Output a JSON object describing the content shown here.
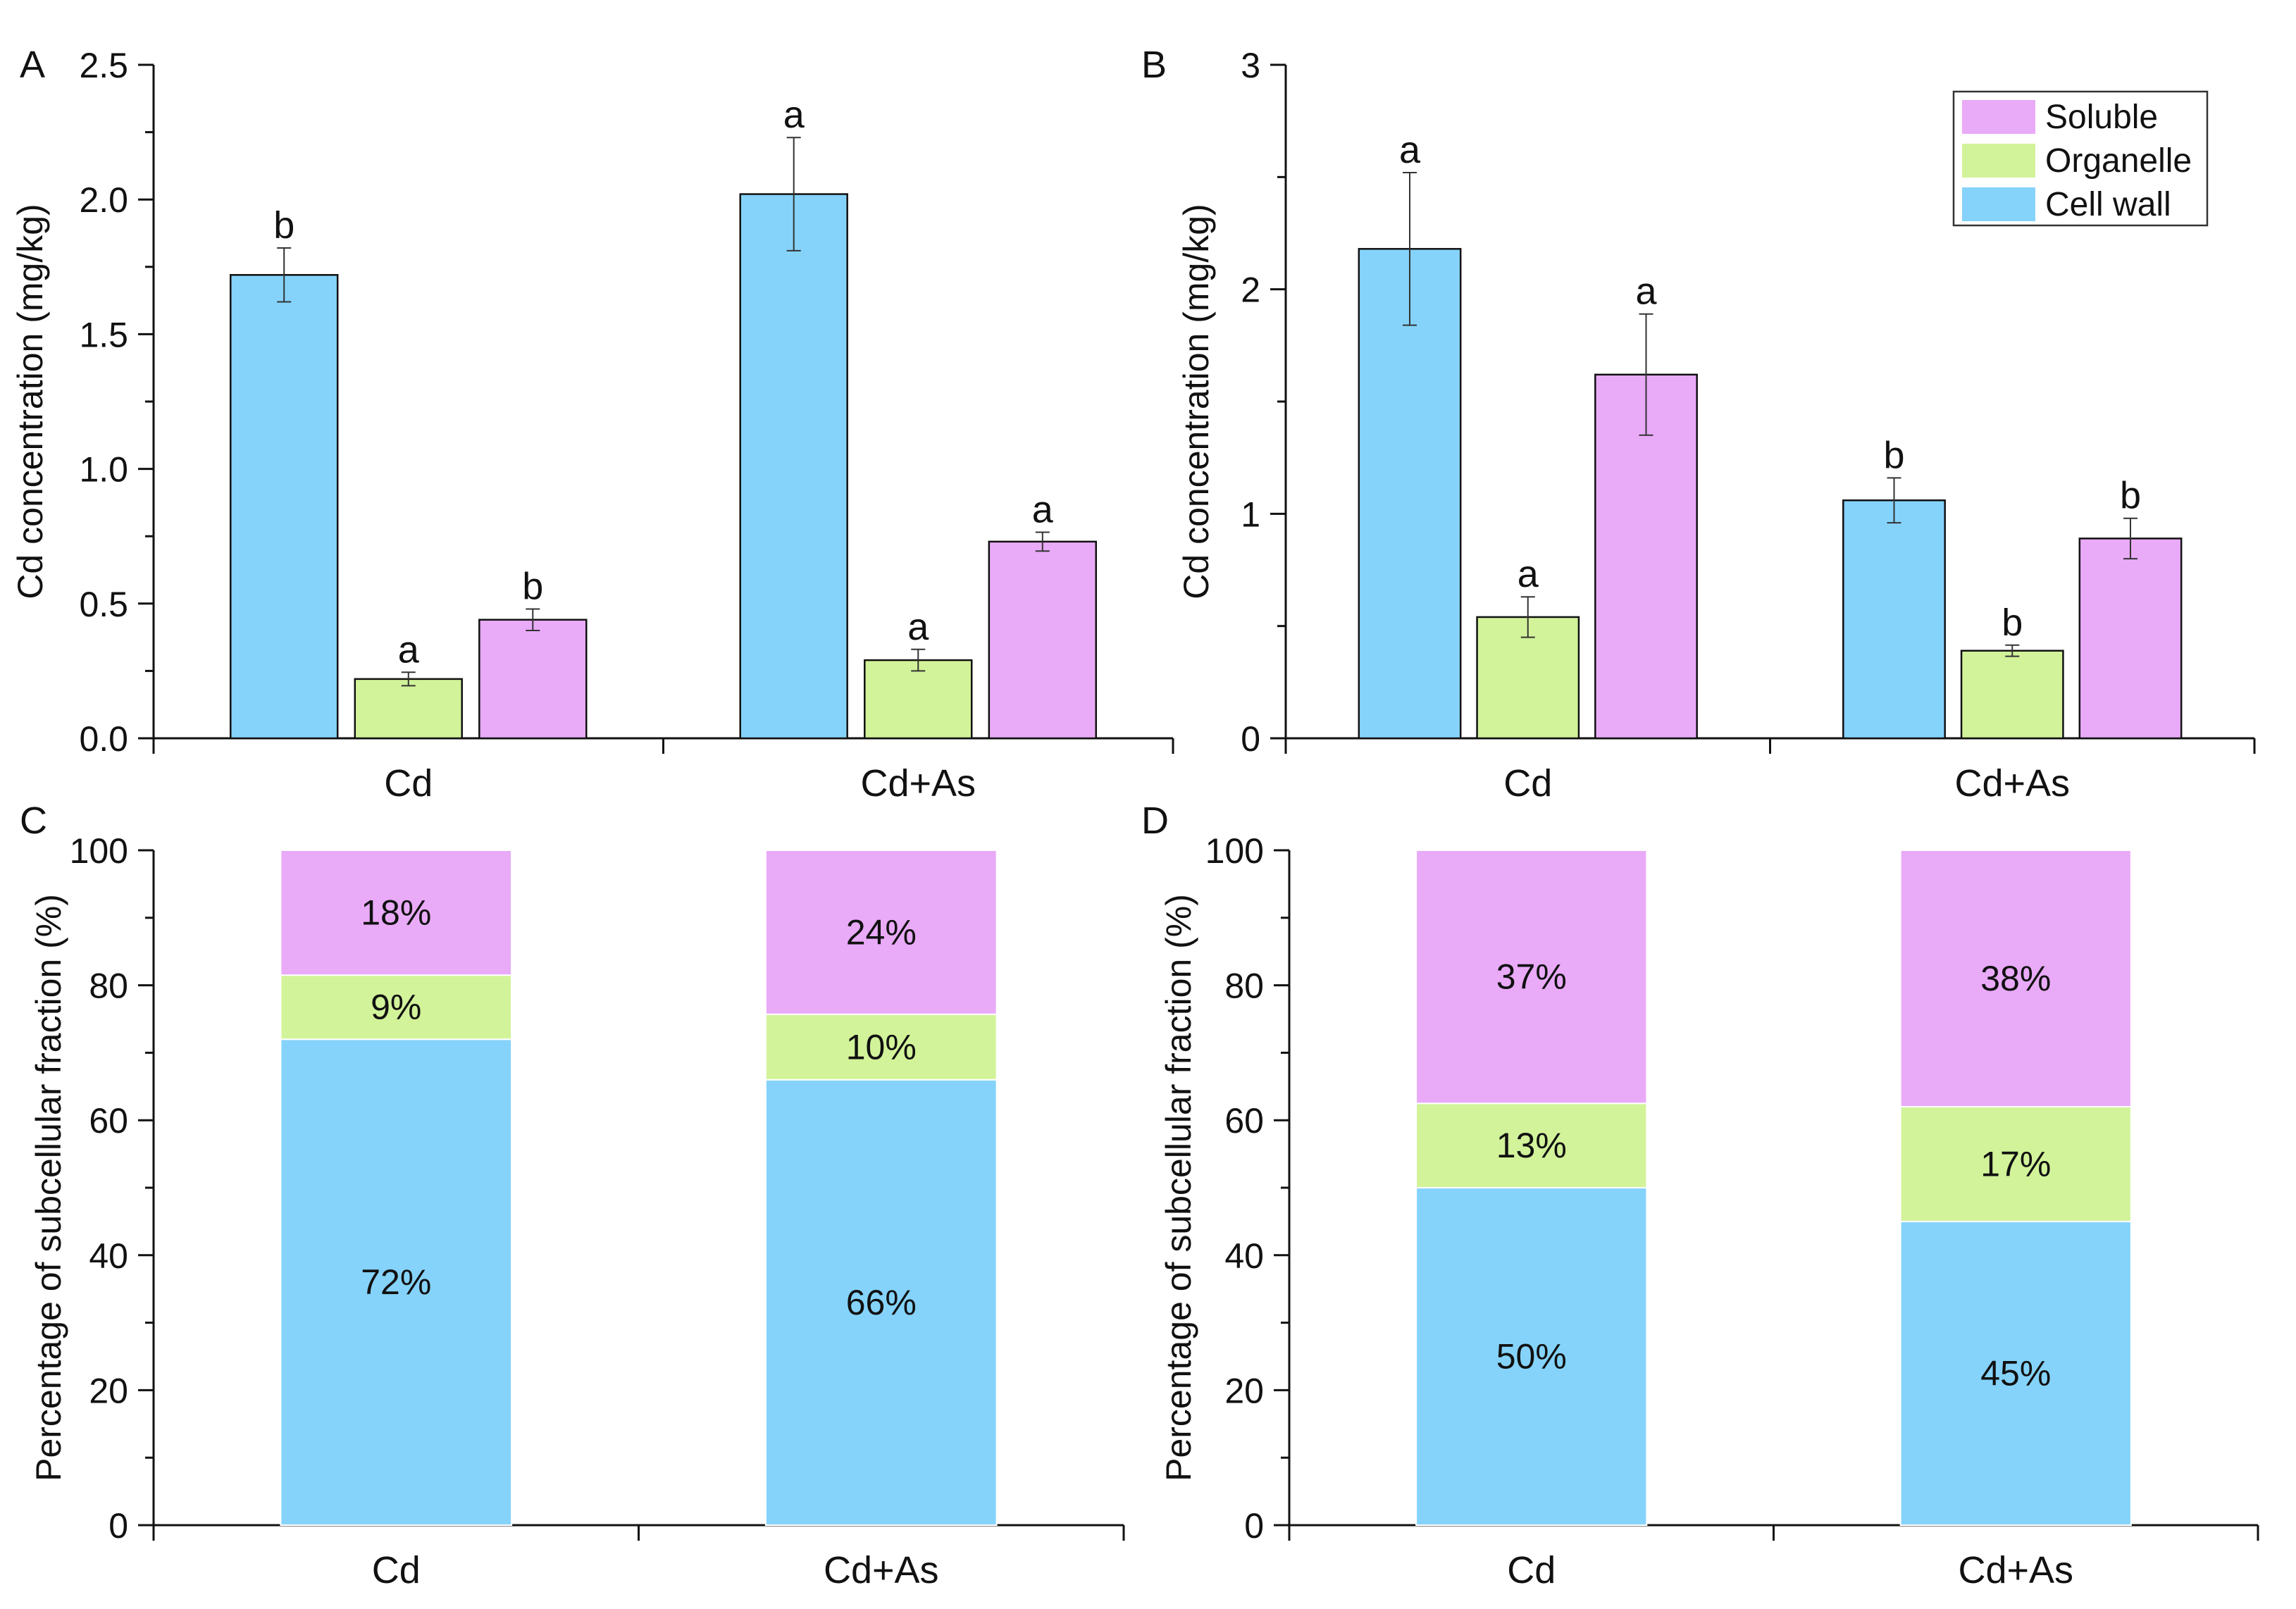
{
  "figure": {
    "background": "#ffffff"
  },
  "colors": {
    "Cell wall": "#85d3fb",
    "Organelle": "#d2f39a",
    "Soluble": "#e9aaf8",
    "axis": "#111111"
  },
  "legend": {
    "placement": "top-right of panel B",
    "items": [
      "Soluble",
      "Organelle",
      "Cell wall"
    ]
  },
  "chart_data": [
    {
      "panel": "A",
      "type": "bar",
      "categories": [
        "Cd",
        "Cd+As"
      ],
      "series": [
        {
          "name": "Cell wall",
          "values": [
            1.72,
            2.02
          ],
          "errors": [
            0.1,
            0.21
          ],
          "letters": [
            "b",
            "a"
          ]
        },
        {
          "name": "Organelle",
          "values": [
            0.22,
            0.29
          ],
          "errors": [
            0.025,
            0.04
          ],
          "letters": [
            "a",
            "a"
          ]
        },
        {
          "name": "Soluble",
          "values": [
            0.44,
            0.73
          ],
          "errors": [
            0.04,
            0.035
          ],
          "letters": [
            "b",
            "a"
          ]
        }
      ],
      "ylabel": "Cd concentration (mg/kg)",
      "xlabel": "",
      "ylim": [
        0,
        2.5
      ],
      "yticks": [
        0,
        0.5,
        1.0,
        1.5,
        2.0,
        2.5
      ],
      "ytick_labels": [
        "0.0",
        "0.5",
        "1.0",
        "1.5",
        "2.0",
        "2.5"
      ]
    },
    {
      "panel": "B",
      "type": "bar",
      "categories": [
        "Cd",
        "Cd+As"
      ],
      "series": [
        {
          "name": "Cell wall",
          "values": [
            2.18,
            1.06
          ],
          "errors": [
            0.34,
            0.1
          ],
          "letters": [
            "a",
            "b"
          ]
        },
        {
          "name": "Organelle",
          "values": [
            0.54,
            0.39
          ],
          "errors": [
            0.09,
            0.025
          ],
          "letters": [
            "a",
            "b"
          ]
        },
        {
          "name": "Soluble",
          "values": [
            1.62,
            0.89
          ],
          "errors": [
            0.27,
            0.09
          ],
          "letters": [
            "a",
            "b"
          ]
        }
      ],
      "ylabel": "Cd concentration (mg/kg)",
      "xlabel": "",
      "ylim": [
        0,
        3
      ],
      "yticks": [
        0,
        1,
        2,
        3
      ],
      "ytick_labels": [
        "0",
        "1",
        "2",
        "3"
      ]
    },
    {
      "panel": "C",
      "type": "bar",
      "stacked": true,
      "categories": [
        "Cd",
        "Cd+As"
      ],
      "series": [
        {
          "name": "Cell wall",
          "values": [
            72,
            66
          ],
          "labels": [
            "72%",
            "66%"
          ]
        },
        {
          "name": "Organelle",
          "values": [
            9.5,
            9.7
          ],
          "labels": [
            "9%",
            "10%"
          ]
        },
        {
          "name": "Soluble",
          "values": [
            18.5,
            24.3
          ],
          "labels": [
            "18%",
            "24%"
          ]
        }
      ],
      "ylabel": "Percentage of subcellular fraction (%)",
      "xlabel": "",
      "ylim": [
        0,
        100
      ],
      "yticks": [
        0,
        20,
        40,
        60,
        80,
        100
      ],
      "ytick_labels": [
        "0",
        "20",
        "40",
        "60",
        "80",
        "100"
      ]
    },
    {
      "panel": "D",
      "type": "bar",
      "stacked": true,
      "categories": [
        "Cd",
        "Cd+As"
      ],
      "series": [
        {
          "name": "Cell wall",
          "values": [
            50,
            45
          ],
          "labels": [
            "50%",
            "45%"
          ]
        },
        {
          "name": "Organelle",
          "values": [
            12.5,
            17
          ],
          "labels": [
            "13%",
            "17%"
          ]
        },
        {
          "name": "Soluble",
          "values": [
            37.5,
            38
          ],
          "labels": [
            "37%",
            "38%"
          ]
        }
      ],
      "ylabel": "Percentage of subcellular fraction (%)",
      "xlabel": "",
      "ylim": [
        0,
        100
      ],
      "yticks": [
        0,
        20,
        40,
        60,
        80,
        100
      ],
      "ytick_labels": [
        "0",
        "20",
        "40",
        "60",
        "80",
        "100"
      ]
    }
  ]
}
